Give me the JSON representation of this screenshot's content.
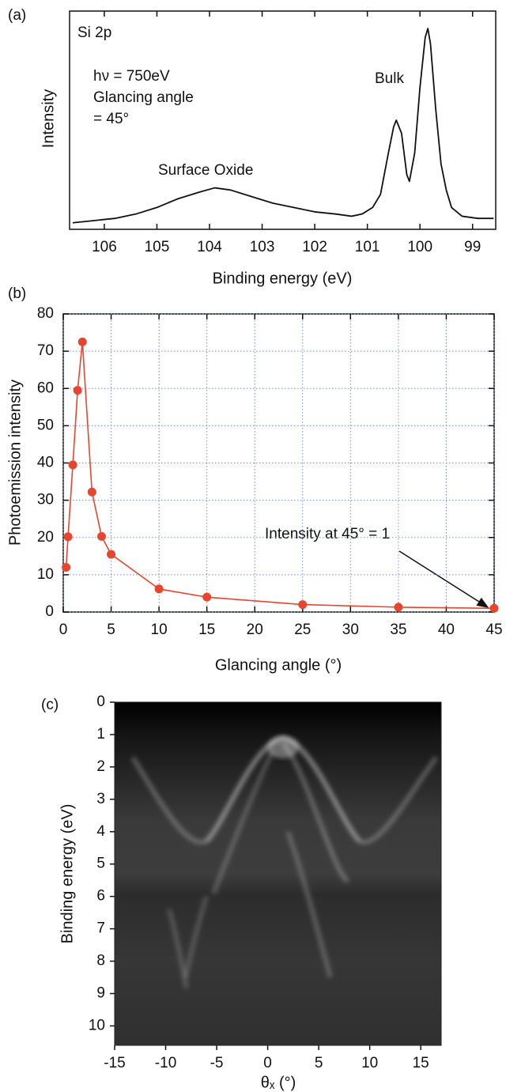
{
  "chart_data": [
    {
      "type": "line",
      "panel_label": "(a)",
      "xlabel": "Binding energy (eV)",
      "ylabel": "Intensity",
      "annotations": [
        "Si 2p",
        "hν = 750eV",
        "Glancing angle",
        "= 45°",
        "Bulk",
        "Surface Oxide"
      ],
      "x": [
        106.6,
        106.2,
        105.8,
        105.4,
        105,
        104.6,
        104.2,
        103.9,
        103.6,
        103.2,
        102.8,
        102.4,
        102,
        101.6,
        101.3,
        101.1,
        100.9,
        100.75,
        100.6,
        100.5,
        100.45,
        100.35,
        100.25,
        100.2,
        100.1,
        100.0,
        99.9,
        99.85,
        99.8,
        99.7,
        99.6,
        99.5,
        99.4,
        99.2,
        98.9,
        98.6
      ],
      "values": [
        3,
        4,
        5,
        7,
        10,
        14,
        17,
        19,
        18,
        15,
        12,
        10,
        8,
        7,
        6,
        7,
        10,
        16,
        35,
        47,
        50,
        44,
        25,
        22,
        35,
        65,
        88,
        92,
        85,
        55,
        30,
        18,
        10,
        6,
        5,
        5
      ],
      "color": "#111111",
      "xlim": [
        106.66,
        98.56
      ],
      "xticks": [
        106,
        105,
        104,
        103,
        102,
        101,
        100,
        99
      ],
      "ylim": [
        0,
        100
      ]
    },
    {
      "type": "line",
      "panel_label": "(b)",
      "xlabel": "Glancing angle (°)",
      "ylabel": "Photoemission intensity",
      "annotations": [
        "Intensity at 45° = 1"
      ],
      "x": [
        0.3,
        0.5,
        1,
        1.5,
        2,
        3,
        4,
        5,
        10,
        15,
        25,
        35,
        45
      ],
      "values": [
        12,
        20.2,
        39.5,
        59.5,
        72.5,
        32.2,
        20.3,
        15.5,
        6.2,
        4,
        2,
        1.3,
        1
      ],
      "color": "#e8452c",
      "markers": true,
      "grid": true,
      "xlim": [
        0,
        45
      ],
      "xticks": [
        0,
        5,
        10,
        15,
        20,
        25,
        30,
        35,
        40,
        45
      ],
      "ylim": [
        0,
        80
      ],
      "yticks": [
        0,
        10,
        20,
        30,
        40,
        50,
        60,
        70,
        80
      ]
    },
    {
      "type": "image",
      "panel_label": "(c)",
      "xlabel": "θₓ (°)",
      "ylabel": "Binding energy (eV)",
      "xlim": [
        -15,
        17
      ],
      "xticks": [
        -15,
        -10,
        -5,
        0,
        5,
        10,
        15
      ],
      "ylim": [
        10.6,
        0
      ],
      "yticks": [
        0,
        1,
        2,
        3,
        4,
        5,
        6,
        7,
        8,
        9,
        10
      ]
    }
  ]
}
